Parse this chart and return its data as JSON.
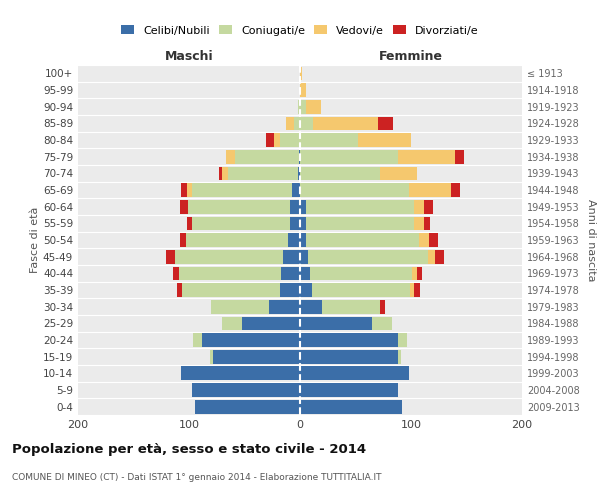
{
  "age_groups": [
    "0-4",
    "5-9",
    "10-14",
    "15-19",
    "20-24",
    "25-29",
    "30-34",
    "35-39",
    "40-44",
    "45-49",
    "50-54",
    "55-59",
    "60-64",
    "65-69",
    "70-74",
    "75-79",
    "80-84",
    "85-89",
    "90-94",
    "95-99",
    "100+"
  ],
  "birth_years": [
    "2009-2013",
    "2004-2008",
    "1999-2003",
    "1994-1998",
    "1989-1993",
    "1984-1988",
    "1979-1983",
    "1974-1978",
    "1969-1973",
    "1964-1968",
    "1959-1963",
    "1954-1958",
    "1949-1953",
    "1944-1948",
    "1939-1943",
    "1934-1938",
    "1929-1933",
    "1924-1928",
    "1919-1923",
    "1914-1918",
    "≤ 1913"
  ],
  "male_celibi": [
    95,
    97,
    107,
    78,
    88,
    52,
    28,
    18,
    17,
    15,
    11,
    9,
    9,
    7,
    2,
    1,
    0,
    0,
    0,
    0,
    0
  ],
  "male_coniugati": [
    0,
    0,
    0,
    3,
    8,
    18,
    52,
    88,
    92,
    98,
    92,
    88,
    92,
    90,
    63,
    58,
    18,
    5,
    2,
    0,
    0
  ],
  "male_vedovi": [
    0,
    0,
    0,
    0,
    0,
    0,
    0,
    0,
    0,
    0,
    0,
    0,
    0,
    5,
    5,
    8,
    5,
    8,
    0,
    0,
    0
  ],
  "male_divorziati": [
    0,
    0,
    0,
    0,
    0,
    0,
    0,
    5,
    5,
    8,
    5,
    5,
    7,
    5,
    3,
    0,
    8,
    0,
    0,
    0,
    0
  ],
  "female_nubili": [
    92,
    88,
    98,
    88,
    88,
    65,
    20,
    11,
    9,
    7,
    5,
    5,
    5,
    0,
    0,
    0,
    0,
    0,
    0,
    0,
    0
  ],
  "female_coniugate": [
    0,
    0,
    0,
    3,
    8,
    18,
    52,
    88,
    92,
    108,
    102,
    98,
    98,
    98,
    72,
    88,
    52,
    12,
    5,
    0,
    0
  ],
  "female_vedove": [
    0,
    0,
    0,
    0,
    0,
    0,
    0,
    4,
    4,
    7,
    9,
    9,
    9,
    38,
    33,
    52,
    48,
    58,
    14,
    5,
    2
  ],
  "female_divorziate": [
    0,
    0,
    0,
    0,
    0,
    0,
    5,
    5,
    5,
    8,
    8,
    5,
    8,
    8,
    0,
    8,
    0,
    14,
    0,
    0,
    0
  ],
  "colors_celibi": "#3b6ea8",
  "colors_coniugati": "#c5d9a0",
  "colors_vedovi": "#f5c86e",
  "colors_divorziati": "#cc2222",
  "title": "Popolazione per età, sesso e stato civile - 2014",
  "subtitle": "COMUNE DI MINEO (CT) - Dati ISTAT 1° gennaio 2014 - Elaborazione TUTTITALIA.IT",
  "label_maschi": "Maschi",
  "label_femmine": "Femmine",
  "ylabel_left": "Fasce di età",
  "ylabel_right": "Anni di nascita",
  "xlim": 200,
  "legend_labels": [
    "Celibi/Nubili",
    "Coniugati/e",
    "Vedovi/e",
    "Divorziati/e"
  ],
  "legend_colors": [
    "#3b6ea8",
    "#c5d9a0",
    "#f5c86e",
    "#cc2222"
  ],
  "bg_color": "#ebebeb"
}
